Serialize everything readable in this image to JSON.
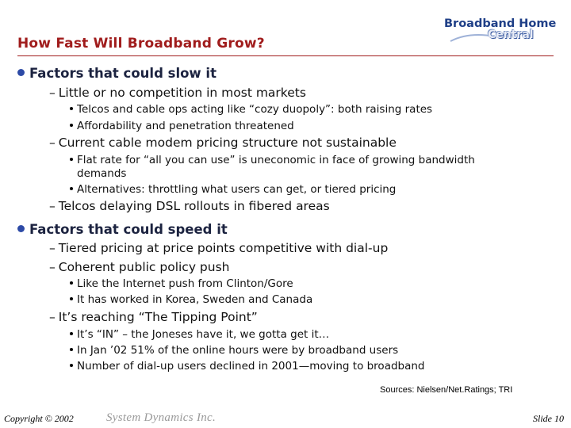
{
  "slide": {
    "title": "How Fast Will Broadband Grow?",
    "logo": {
      "line1": "Broadband Home",
      "line2": "Central"
    },
    "colors": {
      "title": "#a01c1c",
      "bullet": "#2d4aa6",
      "logo": "#1f3f87"
    }
  },
  "sections": [
    {
      "heading": "Factors that could slow it",
      "items": [
        {
          "text": "Little or no competition in most markets",
          "subitems": [
            "Telcos and cable ops acting like “cozy duopoly”: both raising rates",
            "Affordability and penetration threatened"
          ]
        },
        {
          "text": "Current cable modem pricing structure not sustainable",
          "subitems": [
            "Flat rate for “all you can use” is uneconomic in face of growing bandwidth demands",
            "Alternatives: throttling what users can get, or tiered pricing"
          ],
          "subitem_wraps": [
            "Flat rate for “all you can use” is uneconomic in face of growing bandwidth",
            "demands"
          ]
        },
        {
          "text": "Telcos delaying DSL rollouts in fibered areas",
          "subitems": []
        }
      ]
    },
    {
      "heading": "Factors that could speed it",
      "items": [
        {
          "text": "Tiered pricing at price points competitive with dial-up",
          "subitems": []
        },
        {
          "text": "Coherent public policy push",
          "subitems": [
            "Like the Internet push from Clinton/Gore",
            "It has worked in Korea, Sweden and Canada"
          ]
        },
        {
          "text": "It’s reaching “The Tipping Point”",
          "subitems": [
            "It’s “IN” – the Joneses have it, we gotta get it…",
            "In Jan ’02 51% of the online hours were by broadband users",
            "Number of dial-up users declined in 2001—moving to broadband"
          ]
        }
      ]
    }
  ],
  "footer": {
    "sources": "Sources: Nielsen/Net.Ratings; TRI",
    "copyright": "Copyright © 2002",
    "company": "System Dynamics Inc.",
    "slide_number": "Slide 10"
  }
}
